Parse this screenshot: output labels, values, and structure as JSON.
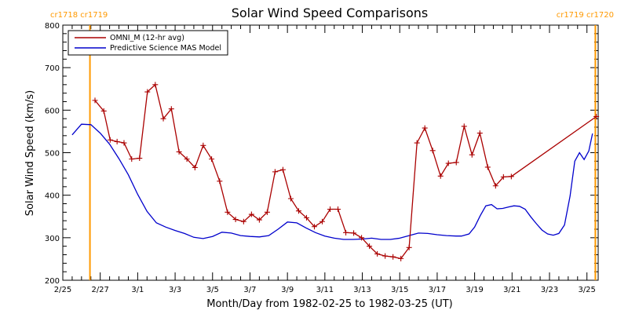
{
  "chart_data": {
    "type": "line",
    "title": "Solar Wind Speed Comparisons",
    "xlabel": "Month/Day from 1982-02-25 to 1982-03-25 (UT)",
    "ylabel": "Solar Wind Speed (km/s)",
    "xlim": [
      0,
      28.6
    ],
    "ylim": [
      200,
      800
    ],
    "x_ticks": [
      {
        "day": 0,
        "label": "2/25"
      },
      {
        "day": 2,
        "label": "2/27"
      },
      {
        "day": 4,
        "label": "3/1"
      },
      {
        "day": 6,
        "label": "3/3"
      },
      {
        "day": 8,
        "label": "3/5"
      },
      {
        "day": 10,
        "label": "3/7"
      },
      {
        "day": 12,
        "label": "3/9"
      },
      {
        "day": 14,
        "label": "3/11"
      },
      {
        "day": 16,
        "label": "3/13"
      },
      {
        "day": 18,
        "label": "3/15"
      },
      {
        "day": 20,
        "label": "3/17"
      },
      {
        "day": 22,
        "label": "3/19"
      },
      {
        "day": 24,
        "label": "3/21"
      },
      {
        "day": 26,
        "label": "3/23"
      },
      {
        "day": 28,
        "label": "3/25"
      }
    ],
    "y_ticks": [
      200,
      300,
      400,
      500,
      600,
      700,
      800
    ],
    "carrington_markers": [
      {
        "day": 1.45,
        "label": "cr1718 cr1719",
        "color": "#ff9900"
      },
      {
        "day": 28.45,
        "label": "cr1719 cr1720",
        "color": "#ff9900"
      }
    ],
    "legend_position": "top-left",
    "series": [
      {
        "name": "OMNI_M (12-hr avg)",
        "color": "#aa0000",
        "marker": "plus",
        "points": [
          [
            1.72,
            623
          ],
          [
            2.19,
            598
          ],
          [
            2.53,
            530
          ],
          [
            2.9,
            526
          ],
          [
            3.27,
            523
          ],
          [
            3.68,
            485
          ],
          [
            4.1,
            487
          ],
          [
            4.52,
            643
          ],
          [
            4.94,
            660
          ],
          [
            5.37,
            580
          ],
          [
            5.8,
            603
          ],
          [
            6.21,
            502
          ],
          [
            6.63,
            485
          ],
          [
            7.06,
            465
          ],
          [
            7.5,
            517
          ],
          [
            7.95,
            485
          ],
          [
            8.38,
            433
          ],
          [
            8.8,
            360
          ],
          [
            9.23,
            343
          ],
          [
            9.66,
            338
          ],
          [
            10.08,
            355
          ],
          [
            10.5,
            342
          ],
          [
            10.92,
            360
          ],
          [
            11.34,
            455
          ],
          [
            11.76,
            460
          ],
          [
            12.18,
            392
          ],
          [
            12.6,
            363
          ],
          [
            13.02,
            347
          ],
          [
            13.44,
            326
          ],
          [
            13.86,
            338
          ],
          [
            14.28,
            367
          ],
          [
            14.7,
            367
          ],
          [
            15.12,
            312
          ],
          [
            15.54,
            311
          ],
          [
            15.96,
            300
          ],
          [
            16.38,
            280
          ],
          [
            16.8,
            262
          ],
          [
            17.22,
            257
          ],
          [
            17.64,
            255
          ],
          [
            18.06,
            251
          ],
          [
            18.5,
            277
          ],
          [
            18.92,
            523
          ],
          [
            19.34,
            558
          ],
          [
            19.76,
            505
          ],
          [
            20.18,
            445
          ],
          [
            20.6,
            475
          ],
          [
            21.02,
            477
          ],
          [
            21.44,
            562
          ],
          [
            21.86,
            495
          ],
          [
            22.28,
            546
          ],
          [
            22.7,
            466
          ],
          [
            23.12,
            422
          ],
          [
            23.54,
            443
          ],
          [
            23.96,
            444
          ],
          [
            28.5,
            585
          ]
        ]
      },
      {
        "name": "Predictive Science MAS Model",
        "color": "#0000cc",
        "marker": "none",
        "points": [
          [
            0.5,
            542
          ],
          [
            1.0,
            567
          ],
          [
            1.5,
            566
          ],
          [
            2.0,
            546
          ],
          [
            2.5,
            520
          ],
          [
            3.0,
            486
          ],
          [
            3.5,
            448
          ],
          [
            4.0,
            402
          ],
          [
            4.5,
            362
          ],
          [
            5.0,
            335
          ],
          [
            5.5,
            325
          ],
          [
            6.0,
            317
          ],
          [
            6.5,
            310
          ],
          [
            7.0,
            301
          ],
          [
            7.5,
            298
          ],
          [
            8.0,
            303
          ],
          [
            8.5,
            313
          ],
          [
            9.0,
            311
          ],
          [
            9.5,
            305
          ],
          [
            10.0,
            303
          ],
          [
            10.5,
            302
          ],
          [
            11.0,
            305
          ],
          [
            11.5,
            320
          ],
          [
            12.0,
            337
          ],
          [
            12.5,
            335
          ],
          [
            13.0,
            323
          ],
          [
            13.5,
            312
          ],
          [
            14.0,
            304
          ],
          [
            14.5,
            299
          ],
          [
            15.0,
            296
          ],
          [
            15.5,
            296
          ],
          [
            16.0,
            297
          ],
          [
            16.5,
            299
          ],
          [
            17.0,
            296
          ],
          [
            17.5,
            296
          ],
          [
            18.0,
            299
          ],
          [
            18.5,
            305
          ],
          [
            19.0,
            311
          ],
          [
            19.5,
            310
          ],
          [
            20.0,
            307
          ],
          [
            20.5,
            305
          ],
          [
            21.0,
            304
          ],
          [
            21.3,
            304
          ],
          [
            21.7,
            309
          ],
          [
            22.0,
            325
          ],
          [
            22.3,
            352
          ],
          [
            22.6,
            375
          ],
          [
            22.9,
            378
          ],
          [
            23.2,
            368
          ],
          [
            23.5,
            369
          ],
          [
            23.8,
            372
          ],
          [
            24.1,
            375
          ],
          [
            24.4,
            374
          ],
          [
            24.7,
            367
          ],
          [
            25.0,
            349
          ],
          [
            25.3,
            333
          ],
          [
            25.6,
            318
          ],
          [
            25.9,
            309
          ],
          [
            26.2,
            306
          ],
          [
            26.5,
            310
          ],
          [
            26.8,
            330
          ],
          [
            27.1,
            398
          ],
          [
            27.35,
            480
          ],
          [
            27.6,
            500
          ],
          [
            27.85,
            484
          ],
          [
            28.1,
            504
          ],
          [
            28.3,
            545
          ]
        ]
      }
    ]
  }
}
